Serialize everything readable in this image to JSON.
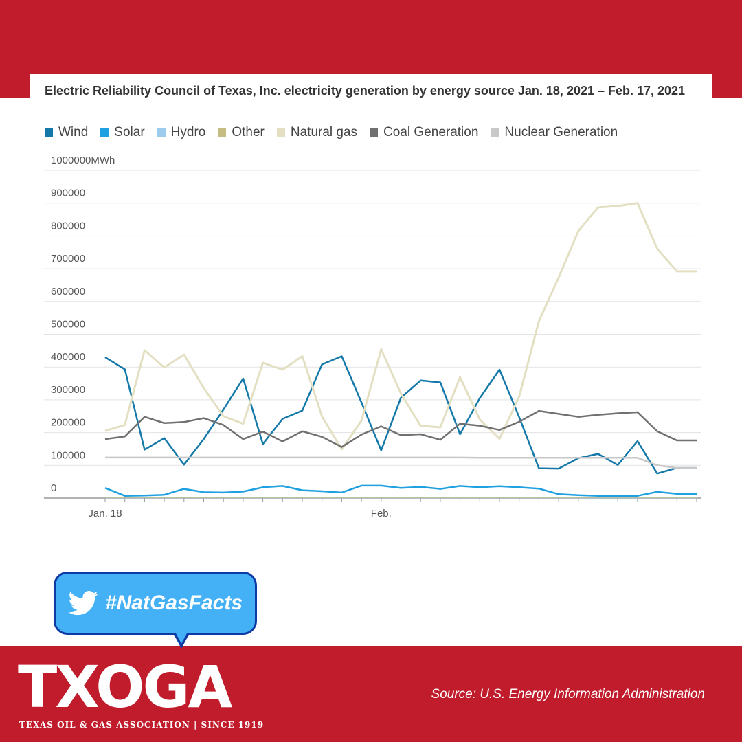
{
  "colors": {
    "brand_red": "#c01c2c",
    "bubble_blue": "#44b0f5",
    "bubble_border": "#0d3aa5"
  },
  "hashtag": {
    "icon": "twitter-bird-icon",
    "text": "#NatGasFacts"
  },
  "logo": {
    "wordmark": "TXOGA",
    "tagline": "TEXAS OIL & GAS ASSOCIATION | SINCE 1919"
  },
  "source": "Source: U.S. Energy Information Administration",
  "chart_data": {
    "type": "line",
    "title": "Electric Reliability Council of Texas, Inc. electricity generation by energy source Jan. 18, 2021 – Feb. 17, 2021",
    "ylabel": "MWh",
    "ylim": [
      0,
      1000000
    ],
    "yticks": [
      "1000000MWh",
      "900000",
      "800000",
      "700000",
      "600000",
      "500000",
      "400000",
      "300000",
      "200000",
      "100000",
      "0"
    ],
    "x_tick_labels": [
      {
        "index": 0,
        "label": "Jan. 18"
      },
      {
        "index": 14,
        "label": "Feb."
      }
    ],
    "x": [
      "2021-01-18",
      "2021-01-19",
      "2021-01-20",
      "2021-01-21",
      "2021-01-22",
      "2021-01-23",
      "2021-01-24",
      "2021-01-25",
      "2021-01-26",
      "2021-01-27",
      "2021-01-28",
      "2021-01-29",
      "2021-01-30",
      "2021-01-31",
      "2021-02-01",
      "2021-02-02",
      "2021-02-03",
      "2021-02-04",
      "2021-02-05",
      "2021-02-06",
      "2021-02-07",
      "2021-02-08",
      "2021-02-09",
      "2021-02-10",
      "2021-02-11",
      "2021-02-12",
      "2021-02-13",
      "2021-02-14",
      "2021-02-15",
      "2021-02-16",
      "2021-02-17"
    ],
    "grid": true,
    "legend": "top-left",
    "series": [
      {
        "name": "Wind",
        "color": "#1478a8",
        "width": 2.5,
        "values": [
          430000,
          393000,
          148000,
          183000,
          102000,
          180000,
          270000,
          365000,
          165000,
          242000,
          267000,
          408000,
          433000,
          292000,
          146000,
          306000,
          359000,
          353000,
          195000,
          305000,
          392000,
          247000,
          91000,
          90000,
          122000,
          135000,
          101000,
          174000,
          75000,
          92000,
          92000
        ]
      },
      {
        "name": "Solar",
        "color": "#1fa0e0",
        "width": 2.5,
        "values": [
          31000,
          7000,
          8000,
          10000,
          28000,
          18000,
          17000,
          20000,
          33000,
          37000,
          24000,
          21000,
          17000,
          38000,
          38000,
          31000,
          34000,
          28000,
          37000,
          33000,
          36000,
          33000,
          29000,
          12000,
          9000,
          7000,
          7000,
          7000,
          19000,
          13000,
          13000
        ]
      },
      {
        "name": "Hydro",
        "color": "#9ccbed",
        "width": 1.5,
        "values": [
          1000,
          1000,
          1000,
          1000,
          1000,
          1000,
          1000,
          1000,
          1000,
          1000,
          1000,
          1000,
          1000,
          1000,
          1000,
          1000,
          1000,
          1000,
          1000,
          1000,
          1000,
          1000,
          1000,
          1000,
          1000,
          1000,
          1000,
          1000,
          1000,
          1000,
          1000
        ]
      },
      {
        "name": "Other",
        "color": "#c4bc82",
        "width": 1.5,
        "values": [
          2000,
          2000,
          2000,
          2000,
          2000,
          2000,
          2000,
          2000,
          2000,
          2000,
          2000,
          2000,
          2000,
          2000,
          2000,
          2000,
          2000,
          2000,
          2000,
          2000,
          2000,
          2000,
          2000,
          2000,
          2000,
          2000,
          2000,
          2000,
          2000,
          2000,
          2000
        ]
      },
      {
        "name": "Natural gas",
        "color": "#e3dfc2",
        "width": 3,
        "values": [
          205000,
          223000,
          451000,
          399000,
          438000,
          336000,
          250000,
          227000,
          413000,
          392000,
          433000,
          249000,
          149000,
          236000,
          454000,
          319000,
          221000,
          216000,
          369000,
          240000,
          181000,
          310000,
          540000,
          673000,
          815000,
          887000,
          891000,
          900000,
          761000,
          692000,
          692000
        ]
      },
      {
        "name": "Coal Generation",
        "color": "#707070",
        "width": 2.5,
        "values": [
          180000,
          188000,
          248000,
          229000,
          232000,
          244000,
          223000,
          180000,
          203000,
          173000,
          204000,
          187000,
          156000,
          194000,
          219000,
          192000,
          195000,
          178000,
          227000,
          221000,
          208000,
          233000,
          266000,
          257000,
          248000,
          254000,
          259000,
          262000,
          204000,
          176000,
          176000
        ]
      },
      {
        "name": "Nuclear Generation",
        "color": "#c8c8c8",
        "width": 2.5,
        "values": [
          124000,
          124000,
          124000,
          124000,
          124000,
          124000,
          124000,
          124000,
          124000,
          124000,
          124000,
          124000,
          124000,
          124000,
          124000,
          124000,
          124000,
          124000,
          124000,
          123000,
          123000,
          123000,
          123000,
          123000,
          123000,
          123000,
          123000,
          123000,
          100000,
          92000,
          92000
        ]
      }
    ]
  }
}
